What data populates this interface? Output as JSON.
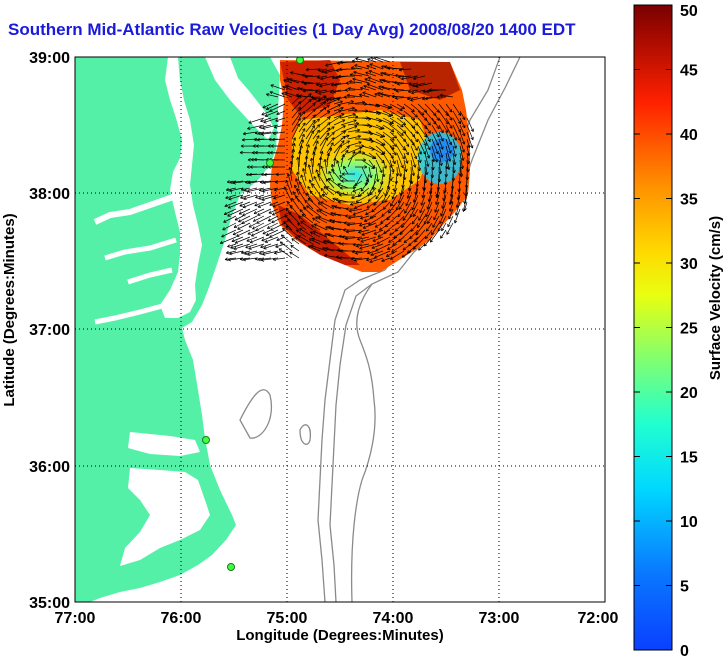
{
  "title": "Southern Mid-Atlantic Raw Velocities (1 Day Avg) 2008/08/20 1400 EDT",
  "map": {
    "xlabel": "Longitude (Degrees:Minutes)",
    "ylabel": "Latitude (Degrees:Minutes)",
    "x_ticks": [
      "77:00",
      "76:00",
      "75:00",
      "74:00",
      "73:00",
      "72:00"
    ],
    "y_ticks": [
      "39:00",
      "38:00",
      "37:00",
      "36:00",
      "35:00"
    ],
    "lon_range": [
      -77,
      -72
    ],
    "lat_range": [
      35,
      39
    ],
    "grid": true,
    "land_color": "#55f0a8",
    "ocean_color": "#ffffff"
  },
  "colorbar": {
    "label": "Surface Velocity (cm/s)",
    "min": 0,
    "max": 50,
    "ticks": [
      "0",
      "5",
      "10",
      "15",
      "20",
      "25",
      "30",
      "35",
      "40",
      "45",
      "50"
    ]
  }
}
